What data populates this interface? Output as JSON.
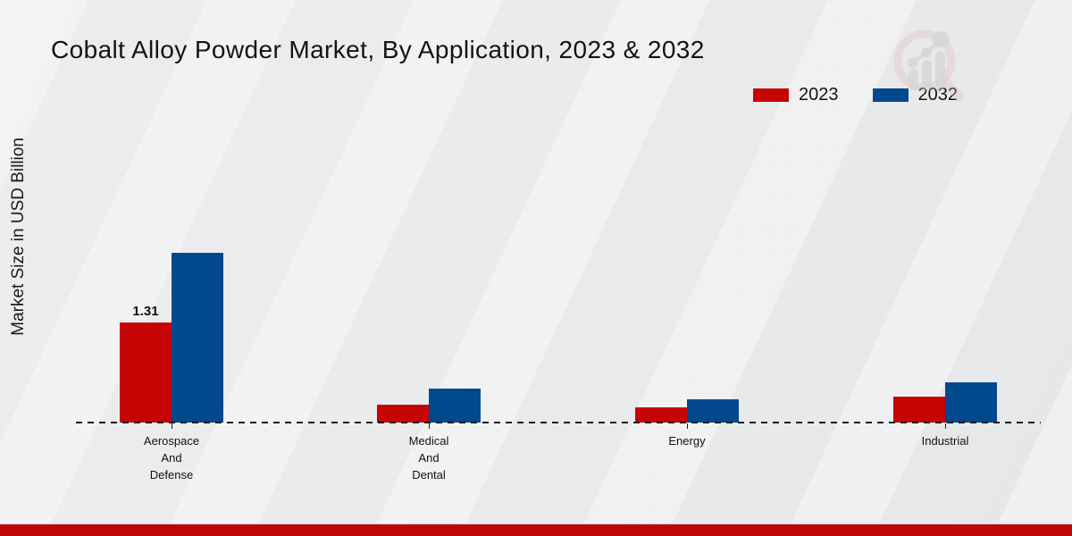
{
  "title": "Cobalt Alloy Powder Market, By Application, 2023 & 2032",
  "ylabel": "Market Size in USD Billion",
  "legend": {
    "position": "top-right",
    "items": [
      {
        "label": "2023",
        "color": "#c50404"
      },
      {
        "label": "2032",
        "color": "#02488c"
      }
    ]
  },
  "chart_data": {
    "type": "bar",
    "categories": [
      "Aerospace\nAnd\nDefense",
      "Medical\nAnd\nDental",
      "Energy",
      "Industrial"
    ],
    "series": [
      {
        "name": "2023",
        "color": "#c50404",
        "values": [
          1.31,
          0.23,
          0.2,
          0.34
        ]
      },
      {
        "name": "2032",
        "color": "#02488c",
        "values": [
          2.22,
          0.44,
          0.3,
          0.53
        ]
      }
    ],
    "value_labels": [
      {
        "series_index": 0,
        "category_index": 0,
        "text": "1.31"
      }
    ],
    "title": "Cobalt Alloy Powder Market, By Application, 2023 & 2032",
    "xlabel": "",
    "ylabel": "Market Size in USD Billion",
    "ylim": [
      0,
      2.6
    ],
    "grid": false,
    "baseline_style": "dashed",
    "legend_position": "top-right"
  },
  "watermark": {
    "icon": "magnifier-bar-chart-logo",
    "ring_color": "#e3b6b6",
    "bars_color": "#c9c9c9"
  },
  "footer": {
    "bar_color": "#c00505"
  }
}
